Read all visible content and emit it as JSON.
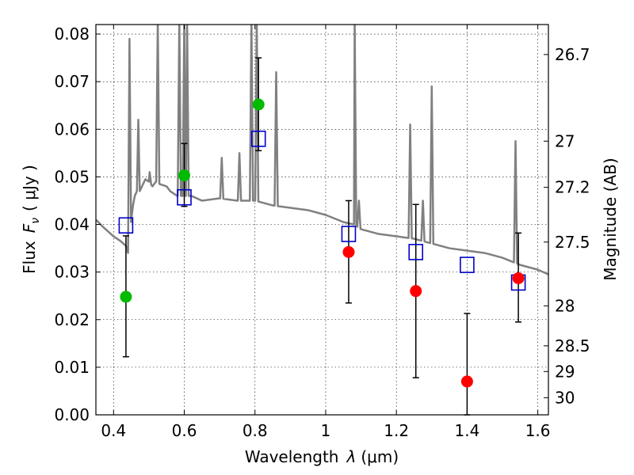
{
  "chart_data": {
    "type": "scatter",
    "title": "",
    "xlabel_prefix": "Wavelength",
    "xlabel_symbol": "λ",
    "xlabel_unit": "(μm)",
    "ylabel_prefix": "Flux",
    "ylabel_symbol": "F",
    "ylabel_subscript": "ν",
    "ylabel_unit": "( μJy )",
    "y2label": "Magnitude (AB)",
    "xlim": [
      0.35,
      1.63
    ],
    "ylim": [
      0.0,
      0.082
    ],
    "grid": true,
    "x_ticks": [
      {
        "value": 0.4,
        "label": "0.4"
      },
      {
        "value": 0.6,
        "label": "0.6"
      },
      {
        "value": 0.8,
        "label": "0.8"
      },
      {
        "value": 1.0,
        "label": "1"
      },
      {
        "value": 1.2,
        "label": "1.2"
      },
      {
        "value": 1.4,
        "label": "1.4"
      },
      {
        "value": 1.6,
        "label": "1.6"
      }
    ],
    "y_ticks": [
      {
        "value": 0.0,
        "label": "0.00"
      },
      {
        "value": 0.01,
        "label": "0.01"
      },
      {
        "value": 0.02,
        "label": "0.02"
      },
      {
        "value": 0.03,
        "label": "0.03"
      },
      {
        "value": 0.04,
        "label": "0.04"
      },
      {
        "value": 0.05,
        "label": "0.05"
      },
      {
        "value": 0.06,
        "label": "0.06"
      },
      {
        "value": 0.07,
        "label": "0.07"
      },
      {
        "value": 0.08,
        "label": "0.08"
      }
    ],
    "y2_ticks": [
      {
        "flux": 0.0757,
        "label": "26.7"
      },
      {
        "flux": 0.0575,
        "label": "27"
      },
      {
        "flux": 0.0478,
        "label": "27.2"
      },
      {
        "flux": 0.0363,
        "label": "27.5"
      },
      {
        "flux": 0.0229,
        "label": "28"
      },
      {
        "flux": 0.0145,
        "label": "28.5"
      },
      {
        "flux": 0.0091,
        "label": "29"
      },
      {
        "flux": 0.0036,
        "label": "30"
      }
    ],
    "series": [
      {
        "kind": "spectrum",
        "color": "#808080",
        "points": [
          [
            0.35,
            0.041
          ],
          [
            0.37,
            0.0395
          ],
          [
            0.4,
            0.0375
          ],
          [
            0.42,
            0.0365
          ],
          [
            0.435,
            0.0355
          ],
          [
            0.441,
            0.034
          ],
          [
            0.445,
            0.036
          ],
          [
            0.45,
            0.041
          ],
          [
            0.455,
            0.044
          ],
          [
            0.46,
            0.046
          ],
          [
            0.466,
            0.047
          ],
          [
            0.47,
            0.055
          ],
          [
            0.474,
            0.047
          ],
          [
            0.49,
            0.0495
          ],
          [
            0.5,
            0.049
          ],
          [
            0.51,
            0.048
          ],
          [
            0.52,
            0.049
          ],
          [
            0.53,
            0.0485
          ],
          [
            0.55,
            0.048
          ],
          [
            0.56,
            0.047
          ],
          [
            0.58,
            0.046
          ],
          [
            0.6,
            0.046
          ],
          [
            0.62,
            0.046
          ],
          [
            0.65,
            0.045
          ],
          [
            0.7,
            0.0455
          ],
          [
            0.75,
            0.045
          ],
          [
            0.8,
            0.045
          ],
          [
            0.85,
            0.044
          ],
          [
            0.9,
            0.0435
          ],
          [
            0.95,
            0.043
          ],
          [
            1.0,
            0.042
          ],
          [
            1.05,
            0.0405
          ],
          [
            1.08,
            0.04
          ],
          [
            1.1,
            0.039
          ],
          [
            1.15,
            0.038
          ],
          [
            1.2,
            0.0375
          ],
          [
            1.25,
            0.037
          ],
          [
            1.3,
            0.036
          ],
          [
            1.35,
            0.035
          ],
          [
            1.4,
            0.0345
          ],
          [
            1.45,
            0.034
          ],
          [
            1.5,
            0.033
          ],
          [
            1.55,
            0.0315
          ],
          [
            1.6,
            0.0305
          ],
          [
            1.63,
            0.0295
          ]
        ],
        "emission_lines": [
          {
            "x": 0.445,
            "peak": 0.079
          },
          {
            "x": 0.47,
            "peak": 0.062
          },
          {
            "x": 0.502,
            "peak": 0.051
          },
          {
            "x": 0.525,
            "peak": 0.083
          },
          {
            "x": 0.586,
            "peak": 0.083
          },
          {
            "x": 0.6,
            "peak": 0.083
          },
          {
            "x": 0.608,
            "peak": 0.083
          },
          {
            "x": 0.706,
            "peak": 0.054
          },
          {
            "x": 0.756,
            "peak": 0.055
          },
          {
            "x": 0.79,
            "peak": 0.083
          },
          {
            "x": 0.805,
            "peak": 0.083
          },
          {
            "x": 0.86,
            "peak": 0.072
          },
          {
            "x": 1.082,
            "peak": 0.083
          },
          {
            "x": 1.094,
            "peak": 0.045
          },
          {
            "x": 1.239,
            "peak": 0.061
          },
          {
            "x": 1.275,
            "peak": 0.045
          },
          {
            "x": 1.3,
            "peak": 0.069
          },
          {
            "x": 1.537,
            "peak": 0.0575
          }
        ]
      },
      {
        "kind": "model-boxes",
        "color": "#0000cc",
        "x": [
          0.435,
          0.6,
          0.81,
          1.065,
          1.255,
          1.4,
          1.545
        ],
        "y": [
          0.0398,
          0.0457,
          0.058,
          0.038,
          0.0342,
          0.0315,
          0.0278
        ]
      },
      {
        "kind": "detections",
        "color": "#00bb00",
        "x": [
          0.435,
          0.6,
          0.81
        ],
        "y": [
          0.0248,
          0.0503,
          0.0652
        ],
        "err_low": [
          0.0122,
          0.0438,
          0.0555
        ],
        "err_high": [
          0.0376,
          0.057,
          0.075
        ]
      },
      {
        "kind": "non-detections",
        "color": "#ff0000",
        "x": [
          1.065,
          1.255,
          1.4,
          1.545
        ],
        "y": [
          0.0342,
          0.026,
          0.007,
          0.0287
        ],
        "err_low": [
          0.0235,
          0.0078,
          0.0,
          0.0195
        ],
        "err_high": [
          0.045,
          0.0442,
          0.0213,
          0.0382
        ]
      }
    ]
  }
}
